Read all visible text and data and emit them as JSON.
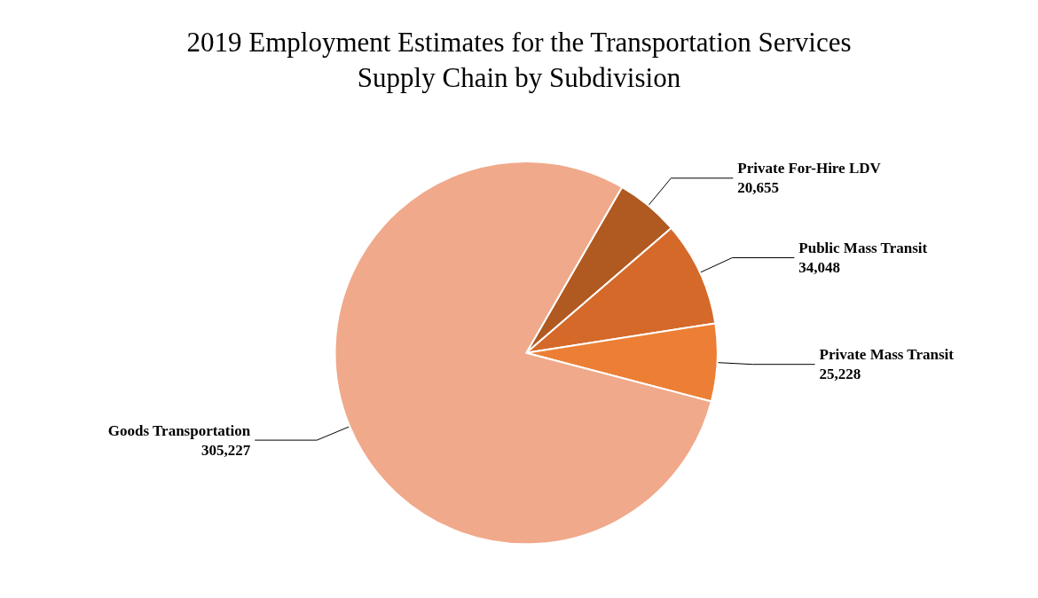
{
  "chart_data": {
    "type": "pie",
    "title": "2019 Employment Estimates for the Transportation Services\nSupply Chain by Subdivision",
    "categories": [
      "Private For-Hire LDV",
      "Public Mass Transit",
      "Private Mass Transit",
      "Goods Transportation"
    ],
    "values": [
      20655,
      34048,
      25228,
      305227
    ],
    "colors": [
      "#b05a22",
      "#d4692a",
      "#ec7f35",
      "#f0a98a"
    ],
    "value_labels": [
      "20,655",
      "34,048",
      "25,228",
      "305,227"
    ],
    "legend": false
  }
}
